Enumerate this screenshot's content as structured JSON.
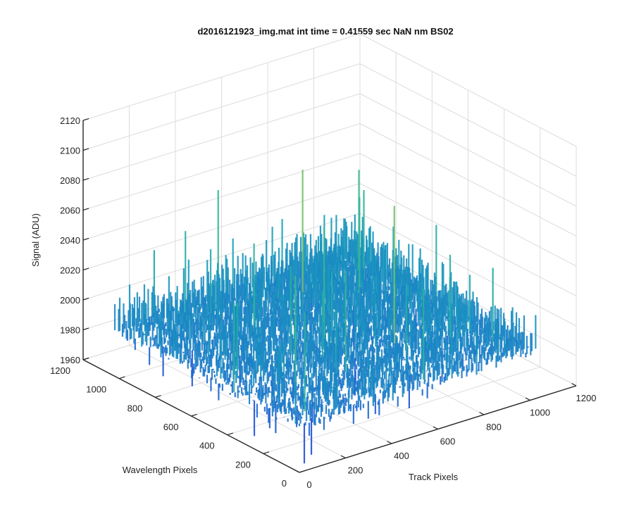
{
  "chart_data": {
    "type": "surface",
    "title": "d2016121923_img.mat int time = 0.41559 sec  NaN nm BS02",
    "xlabel": "Track Pixels",
    "ylabel": "Wavelength Pixels",
    "zlabel": "Signal (ADU)",
    "xlim": [
      0,
      1200
    ],
    "ylim": [
      0,
      1200
    ],
    "zlim": [
      1960,
      2120
    ],
    "x_ticks": [
      "0",
      "200",
      "400",
      "600",
      "800",
      "1000",
      "1200"
    ],
    "y_ticks": [
      "0",
      "200",
      "400",
      "600",
      "800",
      "1000",
      "1200"
    ],
    "z_ticks": [
      "1960",
      "1980",
      "2000",
      "2020",
      "2040",
      "2060",
      "2080",
      "2100",
      "2120"
    ],
    "grid": true,
    "colormap": "parula",
    "surface_summary": {
      "data_x_range": [
        0,
        1024
      ],
      "data_y_range": [
        0,
        1024
      ],
      "mean_signal": 2002,
      "min_signal": 1965,
      "max_signal": 2108
    },
    "colors": {
      "axis": "#262626",
      "grid": "#dcdcdc",
      "low": "#1f4fd8",
      "mid": "#16a3b8",
      "high": "#c9c93a"
    }
  }
}
